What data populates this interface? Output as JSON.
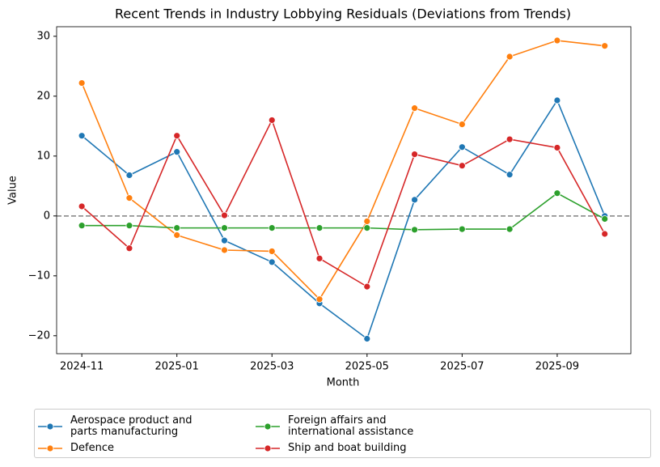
{
  "chart_data": {
    "type": "line",
    "title": "Recent Trends in Industry Lobbying Residuals (Deviations from Trends)",
    "x_label": "Month",
    "y_label": "Value",
    "x": [
      "2024-11",
      "2024-12",
      "2025-01",
      "2025-02",
      "2025-03",
      "2025-04",
      "2025-05",
      "2025-06",
      "2025-07",
      "2025-08",
      "2025-09",
      "2025-10"
    ],
    "xticks": [
      "2024-11",
      "2025-01",
      "2025-03",
      "2025-05",
      "2025-07",
      "2025-09"
    ],
    "ylim": [
      -23,
      31.6
    ],
    "yticks": [
      {
        "value": -20,
        "label": "−20"
      },
      {
        "value": -10,
        "label": "−10"
      },
      0,
      10,
      20,
      30
    ],
    "reference_line": 0,
    "grid": false,
    "legend_position": "bottom",
    "series": [
      {
        "name": "Aerospace product and parts manufacturing",
        "color": "#1f77b4",
        "values": [
          13.4,
          6.8,
          10.7,
          -4.1,
          -7.7,
          -14.6,
          -20.5,
          2.7,
          11.5,
          6.9,
          19.3,
          0
        ]
      },
      {
        "name": "Defence",
        "color": "#ff7f0e",
        "values": [
          22.2,
          3.0,
          -3.2,
          -5.7,
          -5.9,
          -13.9,
          -0.9,
          18.0,
          15.3,
          26.6,
          29.3,
          28.4
        ]
      },
      {
        "name": "Foreign affairs and international assistance",
        "color": "#2ca02c",
        "values": [
          -1.6,
          -1.6,
          -2.0,
          -2.0,
          -2.0,
          -2.0,
          -2.0,
          -2.3,
          -2.2,
          -2.2,
          3.8,
          -0.5
        ]
      },
      {
        "name": "Ship and boat building",
        "color": "#d62728",
        "values": [
          1.6,
          -5.4,
          13.4,
          0.1,
          16.0,
          -7.1,
          -11.8,
          10.3,
          8.4,
          12.8,
          11.4,
          -3.0
        ]
      }
    ]
  }
}
